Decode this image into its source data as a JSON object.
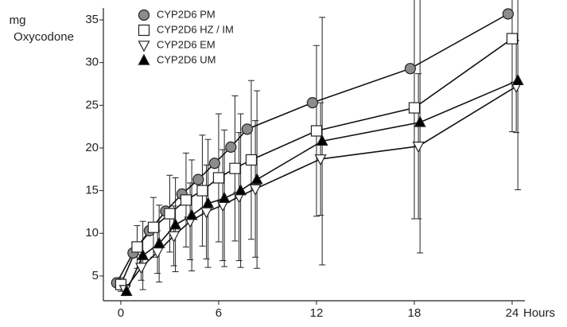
{
  "chart_data": {
    "type": "line",
    "ylabel": [
      "mg",
      "Oxycodone"
    ],
    "xlabel": "Hours",
    "xlim": [
      -1.07,
      24.78
    ],
    "xticks": [
      0,
      6,
      12,
      18,
      24
    ],
    "ylim": [
      2.1,
      36.4
    ],
    "yticks": [
      5,
      10,
      15,
      20,
      25,
      30,
      35
    ],
    "series": [
      {
        "name": "CYP2D6 PM",
        "marker": "circle",
        "color": "#8c8c8c",
        "x": [
          -0.25,
          0.75,
          1.75,
          2.75,
          3.75,
          4.75,
          5.75,
          6.75,
          7.75,
          11.75,
          17.75,
          23.75
        ],
        "values": [
          4.2,
          7.7,
          10.3,
          12.6,
          14.6,
          16.3,
          18.2,
          20.1,
          22.2,
          25.3,
          29.3,
          35.7
        ]
      },
      {
        "name": "CYP2D6 HZ / IM",
        "marker": "square",
        "color": "#ffffff",
        "x": [
          0,
          1,
          2,
          3,
          4,
          5,
          6,
          7,
          8,
          12,
          18,
          24
        ],
        "values": [
          4.0,
          8.4,
          10.7,
          12.3,
          13.9,
          15.0,
          16.5,
          17.6,
          18.6,
          22.0,
          24.7,
          32.8
        ],
        "errors": [
          0.8,
          2.5,
          3.5,
          4.5,
          5.5,
          6.5,
          7.5,
          8.5,
          9.3,
          10.0,
          13.0,
          10.9
        ]
      },
      {
        "name": "CYP2D6 EM",
        "marker": "tri-down",
        "color": "#ffffff",
        "x": [
          0.25,
          1.25,
          2.25,
          3.25,
          4.25,
          5.25,
          6.25,
          7.25,
          8.25,
          12.25,
          18.25,
          24.25
        ],
        "values": [
          3.4,
          6.0,
          7.8,
          9.7,
          11.4,
          12.5,
          13.3,
          14.3,
          15.2,
          18.7,
          20.2,
          27.2
        ],
        "errors": [
          0.6,
          1.5,
          2.5,
          3.5,
          4.5,
          5.5,
          6.5,
          7.5,
          8.0,
          6.6,
          8.5,
          5.4
        ]
      },
      {
        "name": "CYP2D6 UM",
        "marker": "tri-up",
        "color": "#000000",
        "x": [
          0.35,
          1.35,
          2.35,
          3.35,
          4.35,
          5.35,
          6.35,
          7.35,
          8.35,
          12.35,
          18.35,
          24.35
        ],
        "values": [
          3.2,
          7.4,
          8.8,
          11.0,
          12.1,
          13.5,
          14.1,
          15.0,
          16.3,
          20.8,
          23.0,
          27.9
        ],
        "errors": [
          0.5,
          4.0,
          4.5,
          5.5,
          6.5,
          7.5,
          8.0,
          9.0,
          10.4,
          14.5,
          15.3,
          12.8
        ]
      }
    ]
  }
}
